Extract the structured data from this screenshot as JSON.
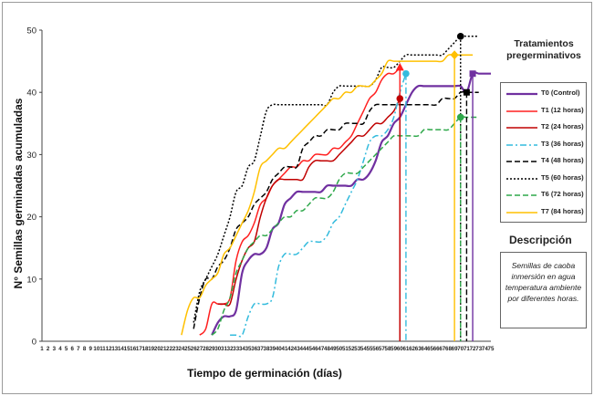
{
  "chart_data": {
    "type": "line",
    "title": "",
    "xlabel": "Tiempo de germinación (días)",
    "ylabel": "N° Semillas germinadas acumuladas",
    "xlim": [
      1,
      75
    ],
    "ylim": [
      0,
      50
    ],
    "x_ticks": [
      1,
      2,
      3,
      4,
      5,
      6,
      7,
      8,
      9,
      10,
      11,
      12,
      13,
      14,
      15,
      16,
      17,
      18,
      19,
      20,
      21,
      22,
      23,
      24,
      25,
      26,
      27,
      28,
      29,
      30,
      31,
      32,
      33,
      34,
      35,
      36,
      37,
      38,
      39,
      40,
      41,
      42,
      43,
      44,
      45,
      46,
      47,
      48,
      49,
      50,
      51,
      52,
      53,
      54,
      55,
      56,
      57,
      58,
      59,
      60,
      61,
      62,
      63,
      64,
      65,
      66,
      67,
      68,
      69,
      70,
      71,
      72,
      73,
      74,
      75
    ],
    "y_ticks": [
      0,
      10,
      20,
      30,
      40,
      50
    ],
    "legend_title": "Tratamientos pregerminativos",
    "series": [
      {
        "name": "T0 (Control)",
        "color": "#7030a0",
        "style": "solid",
        "width": 2.2,
        "x": [
          29,
          30,
          31,
          32,
          33,
          34,
          35,
          36,
          37,
          38,
          39,
          40,
          41,
          42,
          43,
          44,
          45,
          46,
          47,
          48,
          49,
          50,
          51,
          52,
          53,
          54,
          55,
          56,
          57,
          58,
          59,
          60,
          61,
          62,
          63,
          64,
          65,
          66,
          67,
          68,
          69,
          70,
          71,
          72,
          73,
          74,
          75
        ],
        "y": [
          1,
          3,
          4,
          4,
          5,
          11,
          13,
          14,
          14,
          15,
          18,
          19,
          22,
          23,
          24,
          24,
          24,
          24,
          24,
          25,
          25,
          25,
          25,
          25,
          26,
          26,
          27,
          29,
          32,
          33,
          35,
          36,
          38,
          40,
          41,
          41,
          41,
          41,
          41,
          41,
          41,
          41,
          40,
          43,
          43,
          43,
          43
        ],
        "end": {
          "x": 72,
          "y": 43,
          "marker": "square"
        }
      },
      {
        "name": "T1 (12 horas)",
        "color": "#ff2020",
        "style": "solid",
        "width": 1.5,
        "x": [
          27,
          28,
          29,
          30,
          31,
          32,
          33,
          34,
          35,
          36,
          37,
          38,
          39,
          40,
          41,
          42,
          43,
          44,
          45,
          46,
          47,
          48,
          49,
          50,
          51,
          52,
          53,
          54,
          55,
          56,
          57,
          58,
          59,
          60
        ],
        "y": [
          1,
          2,
          6,
          6,
          6,
          7,
          13,
          16,
          17,
          19,
          22,
          23,
          25,
          26,
          27,
          28,
          28,
          29,
          29,
          30,
          30,
          30,
          31,
          31,
          32,
          33,
          35,
          37,
          39,
          40,
          42,
          43,
          43,
          44
        ],
        "end": {
          "x": 60,
          "y": 44,
          "marker": "triangle"
        }
      },
      {
        "name": "T2 (24 horas)",
        "color": "#c00000",
        "style": "solid",
        "width": 1.5,
        "x": [
          30,
          31,
          32,
          33,
          34,
          35,
          36,
          37,
          38,
          39,
          40,
          41,
          42,
          43,
          44,
          45,
          46,
          47,
          48,
          49,
          50,
          51,
          52,
          53,
          54,
          55,
          56,
          57,
          58,
          59,
          60
        ],
        "y": [
          6,
          6,
          6,
          10,
          13,
          15,
          16,
          20,
          23,
          25,
          26,
          26,
          26,
          26,
          26,
          28,
          29,
          29,
          29,
          29,
          30,
          31,
          32,
          33,
          33,
          34,
          35,
          35,
          36,
          37,
          39
        ],
        "end": {
          "x": 60,
          "y": 39,
          "marker": "circle"
        }
      },
      {
        "name": "T3 (36 horas)",
        "color": "#33bbdd",
        "style": "dashdot",
        "width": 1.5,
        "x": [
          32,
          33,
          34,
          35,
          36,
          37,
          38,
          39,
          40,
          41,
          42,
          43,
          44,
          45,
          46,
          47,
          48,
          49,
          50,
          51,
          52,
          53,
          54,
          55,
          56,
          57,
          58,
          59,
          60,
          61
        ],
        "y": [
          1,
          1,
          1,
          4,
          6,
          6,
          6,
          7,
          12,
          14,
          14,
          14,
          15,
          16,
          16,
          16,
          17,
          19,
          20,
          22,
          24,
          26,
          29,
          32,
          33,
          33,
          34,
          36,
          40,
          43
        ],
        "end": {
          "x": 61,
          "y": 43,
          "marker": "circle"
        }
      },
      {
        "name": "T4 (48 horas)",
        "color": "#000000",
        "style": "dash",
        "width": 1.5,
        "x": [
          26,
          27,
          28,
          29,
          30,
          31,
          32,
          33,
          34,
          35,
          36,
          37,
          38,
          39,
          40,
          41,
          42,
          43,
          44,
          45,
          46,
          47,
          48,
          49,
          50,
          51,
          52,
          53,
          54,
          55,
          56,
          57,
          58,
          59,
          60,
          61,
          62,
          63,
          64,
          65,
          66,
          67,
          68,
          69,
          70,
          71,
          72,
          73
        ],
        "y": [
          2,
          7,
          10,
          10,
          12,
          13,
          15,
          18,
          19,
          20,
          22,
          23,
          24,
          26,
          27,
          28,
          28,
          28,
          31,
          32,
          33,
          33,
          34,
          34,
          34,
          35,
          35,
          35,
          35,
          37,
          38,
          38,
          38,
          38,
          38,
          38,
          38,
          38,
          38,
          38,
          38,
          39,
          39,
          39,
          40,
          40,
          40,
          40
        ],
        "end": {
          "x": 71,
          "y": 40,
          "marker": "square"
        }
      },
      {
        "name": "T5 (60 horas)",
        "color": "#000000",
        "style": "dot",
        "width": 1.5,
        "x": [
          26,
          27,
          28,
          29,
          30,
          31,
          32,
          33,
          34,
          35,
          36,
          37,
          38,
          39,
          40,
          41,
          42,
          43,
          44,
          45,
          46,
          47,
          48,
          49,
          50,
          51,
          52,
          53,
          54,
          55,
          56,
          57,
          58,
          59,
          60,
          61,
          62,
          63,
          64,
          65,
          66,
          67,
          68,
          69,
          70,
          71,
          72,
          73
        ],
        "y": [
          3,
          8,
          10,
          12,
          14,
          17,
          20,
          24,
          25,
          28,
          29,
          33,
          37,
          38,
          38,
          38,
          38,
          38,
          38,
          38,
          38,
          38,
          38,
          40,
          41,
          41,
          41,
          41,
          41,
          41,
          42,
          44,
          44,
          44,
          45,
          46,
          46,
          46,
          46,
          46,
          46,
          46,
          47,
          48,
          49,
          49,
          49,
          49
        ],
        "end": {
          "x": 70,
          "y": 49,
          "marker": "circle"
        }
      },
      {
        "name": "T6 (72 horas)",
        "color": "#2ea84a",
        "style": "dash",
        "width": 1.5,
        "x": [
          29,
          30,
          31,
          32,
          33,
          34,
          35,
          36,
          37,
          38,
          39,
          40,
          41,
          42,
          43,
          44,
          45,
          46,
          47,
          48,
          49,
          50,
          51,
          52,
          53,
          54,
          55,
          56,
          57,
          58,
          59,
          60,
          61,
          62,
          63,
          64,
          65,
          66,
          67,
          68,
          69,
          70,
          71,
          72,
          73
        ],
        "y": [
          1,
          2,
          5,
          7,
          11,
          13,
          15,
          16,
          17,
          17,
          18,
          19,
          20,
          20,
          21,
          21,
          22,
          23,
          23,
          23,
          24,
          26,
          27,
          27,
          27,
          28,
          29,
          30,
          31,
          32,
          33,
          33,
          33,
          33,
          33,
          34,
          34,
          34,
          34,
          34,
          35,
          36,
          36,
          36,
          36
        ],
        "end": {
          "x": 70,
          "y": 36,
          "marker": "circle"
        }
      },
      {
        "name": "T7 (84 horas)",
        "color": "#ffc000",
        "style": "solid",
        "width": 1.5,
        "x": [
          24,
          25,
          26,
          27,
          28,
          29,
          30,
          31,
          32,
          33,
          34,
          35,
          36,
          37,
          38,
          39,
          40,
          41,
          42,
          43,
          44,
          45,
          46,
          47,
          48,
          49,
          50,
          51,
          52,
          53,
          54,
          55,
          56,
          57,
          58,
          59,
          60,
          61,
          62,
          63,
          64,
          65,
          66,
          67,
          68,
          69,
          70,
          71,
          72
        ],
        "y": [
          1,
          5,
          7,
          7,
          9,
          10,
          11,
          14,
          15,
          17,
          19,
          21,
          24,
          28,
          29,
          30,
          31,
          31,
          32,
          33,
          34,
          35,
          36,
          37,
          38,
          39,
          39,
          40,
          40,
          41,
          41,
          41,
          42,
          43,
          45,
          45,
          45,
          45,
          45,
          45,
          45,
          45,
          45,
          45,
          46,
          46,
          46,
          46,
          46
        ],
        "end": {
          "x": 69,
          "y": 46,
          "marker": "diamond"
        }
      }
    ],
    "legend_placement": "right",
    "description": {
      "title": "Descripción",
      "text": "Semillas de caoba inmersión en agua temperatura ambiente por diferentes horas."
    }
  }
}
